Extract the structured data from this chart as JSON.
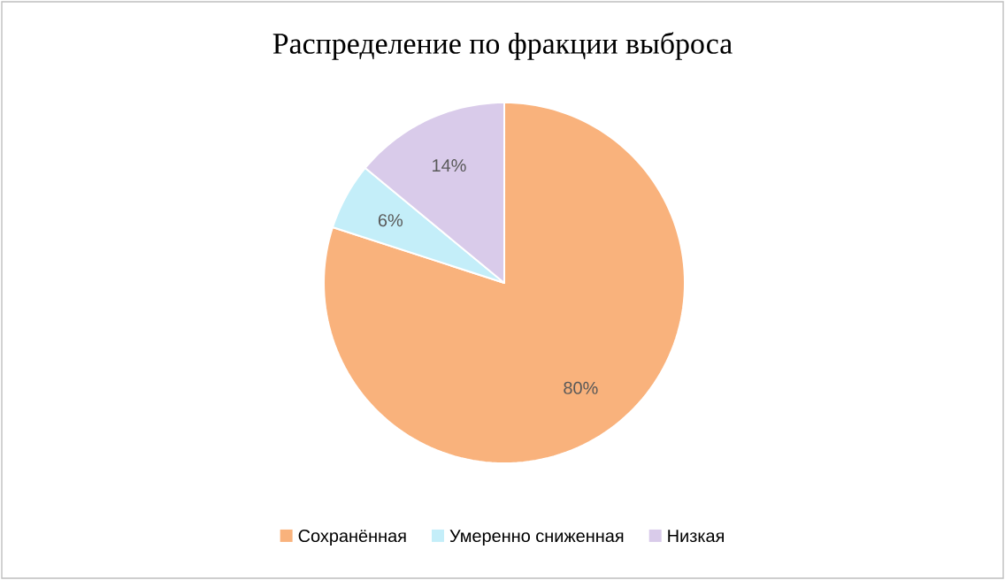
{
  "chart_data": {
    "type": "pie",
    "title": "Распределение по фракции выброса",
    "categories": [
      "Сохранённая",
      "Умеренно сниженная",
      "Низкая"
    ],
    "values": [
      80,
      6,
      14
    ],
    "colors": [
      "#f9b27c",
      "#c4eef9",
      "#d9cbea"
    ],
    "value_labels": [
      "80%",
      "6%",
      "14%"
    ],
    "legend": "bottom"
  }
}
